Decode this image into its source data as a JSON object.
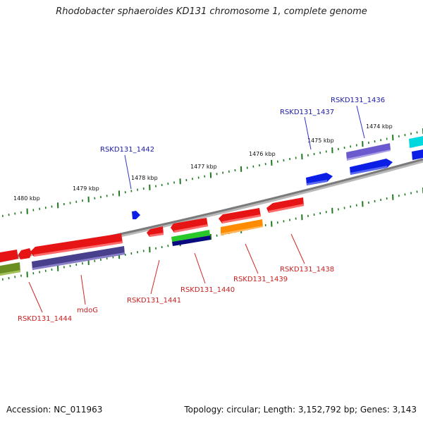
{
  "title": "Rhodobacter sphaeroides KD131 chromosome 1, complete genome",
  "footer": {
    "accession": "Accession: NC_011963",
    "summary": "Topology: circular; Length: 3,152,792 bp; Genes: 3,143"
  },
  "colors": {
    "backbone": "#808080",
    "tick": "#1f7a1f",
    "label_top": "#1a1aa6",
    "label_bottom": "#c81e1e",
    "connector_top": "#3030d0",
    "connector_bottom": "#d02828"
  },
  "kbp_labels": [
    {
      "text": "1474 kbp",
      "kbp": 1474
    },
    {
      "text": "1475 kbp",
      "kbp": 1475
    },
    {
      "text": "1476 kbp",
      "kbp": 1476
    },
    {
      "text": "1477 kbp",
      "kbp": 1477
    },
    {
      "text": "1478 kbp",
      "kbp": 1478
    },
    {
      "text": "1479 kbp",
      "kbp": 1479
    },
    {
      "text": "1480 kbp",
      "kbp": 1480
    }
  ],
  "gene_labels_top": [
    {
      "id": "RSKD131_1436",
      "text": "RSKD131_1436"
    },
    {
      "id": "RSKD131_1437",
      "text": "RSKD131_1437"
    },
    {
      "id": "RSKD131_1442",
      "text": "RSKD131_1442"
    }
  ],
  "gene_labels_bottom": [
    {
      "id": "RSKD131_1438",
      "text": "RSKD131_1438"
    },
    {
      "id": "RSKD131_1439",
      "text": "RSKD131_1439"
    },
    {
      "id": "RSKD131_1440",
      "text": "RSKD131_1440"
    },
    {
      "id": "RSKD131_1441",
      "text": "RSKD131_1441"
    },
    {
      "id": "mdoG",
      "text": "mdoG"
    },
    {
      "id": "RSKD131_1444",
      "text": "RSKD131_1444"
    }
  ],
  "features": [
    {
      "name": "cyan-feature",
      "color": "#00d8e0"
    },
    {
      "name": "blue-feature",
      "color": "#0a1ee6"
    },
    {
      "name": "purple-feature",
      "color": "#6a5acd"
    },
    {
      "name": "red-feature",
      "color": "#e61414"
    },
    {
      "name": "green-feature",
      "color": "#28c828"
    },
    {
      "name": "navy-feature",
      "color": "#0a0a80"
    },
    {
      "name": "orange-feature",
      "color": "#ff8c00"
    },
    {
      "name": "slate-feature",
      "color": "#48408c"
    },
    {
      "name": "olive-feature",
      "color": "#6b8e23"
    }
  ]
}
